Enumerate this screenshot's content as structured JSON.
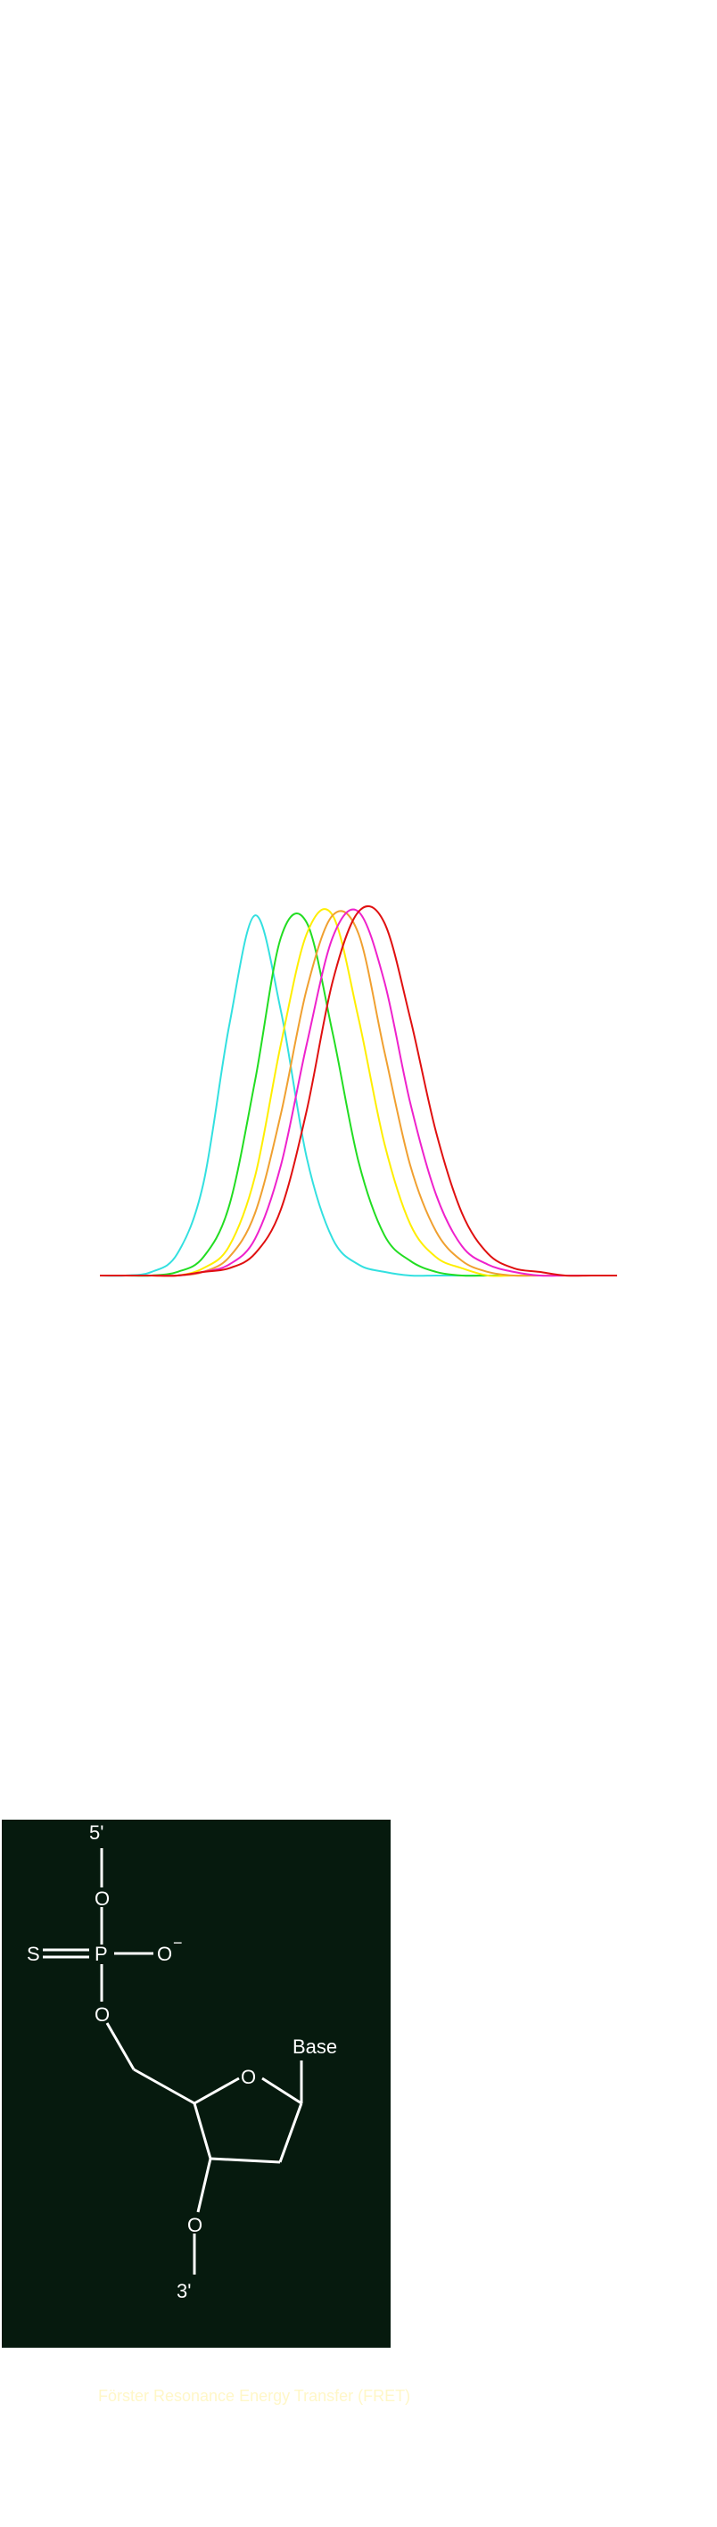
{
  "chart_data": {
    "type": "line",
    "title": "",
    "xlabel": "",
    "ylabel": "",
    "grid": false,
    "legend": "none",
    "x": [
      0,
      1,
      2,
      3,
      4,
      5,
      6,
      7,
      8,
      9,
      10,
      11,
      12,
      13,
      14,
      15,
      16,
      17,
      18,
      19,
      20
    ],
    "xlim": [
      0,
      20
    ],
    "ylim": [
      0,
      1
    ],
    "series": [
      {
        "color": "#33e0e0",
        "values": [
          0.0,
          0.0,
          0.01,
          0.06,
          0.25,
          0.68,
          0.98,
          0.72,
          0.32,
          0.1,
          0.03,
          0.01,
          0.0,
          0.0,
          0.0,
          0.0,
          0.0,
          0.0,
          0.0,
          0.0,
          0.0
        ]
      },
      {
        "color": "#22dd22",
        "values": [
          0.0,
          0.0,
          0.0,
          0.01,
          0.05,
          0.19,
          0.53,
          0.92,
          0.96,
          0.66,
          0.31,
          0.11,
          0.04,
          0.01,
          0.0,
          0.0,
          0.0,
          0.0,
          0.0,
          0.0,
          0.0
        ]
      },
      {
        "color": "#ffee00",
        "values": [
          0.0,
          0.0,
          0.0,
          0.0,
          0.02,
          0.08,
          0.27,
          0.63,
          0.93,
          0.98,
          0.7,
          0.36,
          0.14,
          0.05,
          0.02,
          0.0,
          0.0,
          0.0,
          0.0,
          0.0,
          0.0
        ]
      },
      {
        "color": "#f0a030",
        "values": [
          0.0,
          0.0,
          0.0,
          0.0,
          0.01,
          0.05,
          0.17,
          0.44,
          0.78,
          0.98,
          0.93,
          0.61,
          0.3,
          0.12,
          0.04,
          0.01,
          0.0,
          0.0,
          0.0,
          0.0,
          0.0
        ]
      },
      {
        "color": "#ee22cc",
        "values": [
          0.0,
          0.0,
          0.0,
          0.0,
          0.01,
          0.03,
          0.1,
          0.3,
          0.63,
          0.92,
          0.99,
          0.8,
          0.47,
          0.22,
          0.08,
          0.03,
          0.01,
          0.0,
          0.0,
          0.0,
          0.0
        ]
      },
      {
        "color": "#e01010",
        "values": [
          0.0,
          0.0,
          0.0,
          0.0,
          0.01,
          0.02,
          0.06,
          0.18,
          0.45,
          0.8,
          0.99,
          0.96,
          0.7,
          0.39,
          0.17,
          0.06,
          0.02,
          0.01,
          0.0,
          0.0,
          0.0
        ]
      }
    ]
  },
  "structure": {
    "labels": {
      "five_prime": "5'",
      "oxygen_top": "O",
      "sulfur": "S",
      "phosphorus": "P",
      "oxygen_anion": "O",
      "minus_sign": "−",
      "oxygen_bridge": "O",
      "ring_oxygen": "O",
      "base": "Base",
      "oxygen_3": "O",
      "three_prime": "3'"
    },
    "colors": {
      "background": "#061a0e",
      "foreground": "#ffffff"
    }
  },
  "caption": {
    "text": "Förster Resonance Energy Transfer (FRET)",
    "color": "#fff7c8"
  }
}
